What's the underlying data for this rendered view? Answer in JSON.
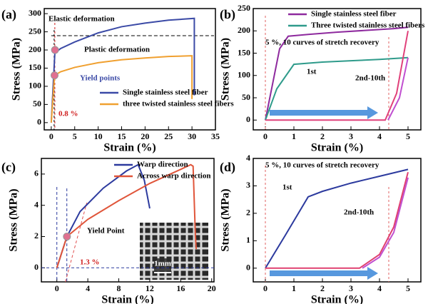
{
  "chart_data": [
    {
      "type": "line",
      "panel": "(a)",
      "xlabel": "Strain (%)",
      "ylabel": "Stress (MPa)",
      "xlim": [
        -1.5,
        35
      ],
      "ylim": [
        -20,
        314
      ],
      "xticks": [
        0,
        5,
        10,
        15,
        20,
        25,
        30,
        35
      ],
      "yticks": [
        0,
        50,
        100,
        150,
        200,
        250,
        300
      ],
      "series": [
        {
          "name": "Single stainless steel fiber",
          "color": "#3b4aa6",
          "x": [
            0,
            0.8,
            1.2,
            2,
            5,
            10,
            15,
            20,
            25,
            30.5,
            30.5
          ],
          "values": [
            0,
            200,
            196,
            204,
            222,
            247,
            264,
            274,
            282,
            287,
            75
          ]
        },
        {
          "name": "three twisted stainless steel fibers",
          "color": "#f0a030",
          "x": [
            0,
            0.7,
            2,
            5,
            10,
            15,
            20,
            25,
            30,
            30
          ],
          "values": [
            0,
            130,
            140,
            152,
            165,
            173,
            178,
            182,
            184,
            65
          ]
        }
      ],
      "annotations": [
        "Elastic deformation",
        "Plastic deformation",
        "Yield points",
        "0.8 %"
      ]
    },
    {
      "type": "line",
      "panel": "(b)",
      "xlabel": "Strain (%)",
      "ylabel": "Stress (MPa)",
      "xlim": [
        -0.425,
        5.45
      ],
      "ylim": [
        -22,
        250
      ],
      "xticks": [
        0,
        1,
        2,
        3,
        4,
        5
      ],
      "yticks": [
        0,
        50,
        100,
        150,
        200,
        250
      ],
      "series": [
        {
          "name": "Single stainless steel fiber",
          "color": "#8e2a9e",
          "x": [
            0,
            0.5,
            0.8,
            1.5,
            2.5,
            3.5,
            4.5,
            5
          ],
          "values": [
            0,
            160,
            188,
            192,
            197,
            201,
            205,
            208
          ]
        },
        {
          "name": "Three twisted stainless steel fibers",
          "color": "#2f9b8b",
          "x": [
            0,
            0.4,
            1,
            2,
            3,
            4,
            5
          ],
          "values": [
            0,
            70,
            125,
            130,
            133,
            136,
            140
          ]
        },
        {
          "color": "#e0407a",
          "x": [
            0,
            4.2,
            4.6,
            5
          ],
          "values": [
            0,
            0,
            60,
            200
          ]
        },
        {
          "color": "#c04fd0",
          "x": [
            4.3,
            4.7,
            5
          ],
          "values": [
            0,
            50,
            140
          ]
        }
      ],
      "annotations": [
        "5 %, 10 curves of stretch recovery",
        "1st",
        "2nd-10th"
      ]
    },
    {
      "type": "line",
      "panel": "(c)",
      "xlabel": "Strain (%)",
      "ylabel": "Stress (MPa)",
      "xlim": [
        -2,
        20.3
      ],
      "ylim": [
        -0.9,
        7
      ],
      "xticks": [
        0,
        4,
        8,
        12,
        16,
        20
      ],
      "yticks": [
        0,
        2,
        4,
        6
      ],
      "series": [
        {
          "name": "Warp direction",
          "color": "#2c3a9e",
          "x": [
            0,
            1.3,
            3,
            6,
            9,
            10.5,
            11.3,
            12
          ],
          "values": [
            0,
            2,
            3.6,
            5.1,
            6.2,
            6.6,
            5.6,
            3.8
          ]
        },
        {
          "name": "Across warp direction",
          "color": "#e0553a",
          "x": [
            0,
            1.3,
            4,
            8,
            12,
            16,
            17.3,
            17.6,
            17.9,
            18
          ],
          "values": [
            0,
            2,
            3.1,
            4.3,
            5.4,
            6.3,
            6.6,
            6.5,
            2,
            1.2
          ]
        }
      ],
      "annotations": [
        "Yield Point",
        "1.3 %",
        "1mm"
      ]
    },
    {
      "type": "line",
      "panel": "(d)",
      "xlabel": "Strain (%)",
      "ylabel": "Stress (MPa)",
      "xlim": [
        -0.425,
        5.45
      ],
      "ylim": [
        -0.5,
        4
      ],
      "xticks": [
        0,
        1,
        2,
        3,
        4,
        5
      ],
      "yticks": [
        0,
        1,
        2,
        3,
        4
      ],
      "series": [
        {
          "color": "#2c3a9e",
          "x": [
            0,
            0.7,
            1.5,
            2,
            3,
            4,
            5
          ],
          "values": [
            0,
            1.2,
            2.6,
            2.8,
            3.1,
            3.35,
            3.6
          ]
        },
        {
          "color": "#e04070",
          "x": [
            0,
            3.3,
            4,
            4.5,
            5
          ],
          "values": [
            0,
            0,
            0.5,
            1.5,
            3.5
          ]
        },
        {
          "color": "#c050d0",
          "x": [
            3.4,
            4,
            4.5,
            5
          ],
          "values": [
            0,
            0.4,
            1.3,
            3.3
          ]
        }
      ],
      "annotations": [
        "5 %, 10 curves of stretch recovery",
        "1st",
        "2nd-10th"
      ]
    }
  ]
}
